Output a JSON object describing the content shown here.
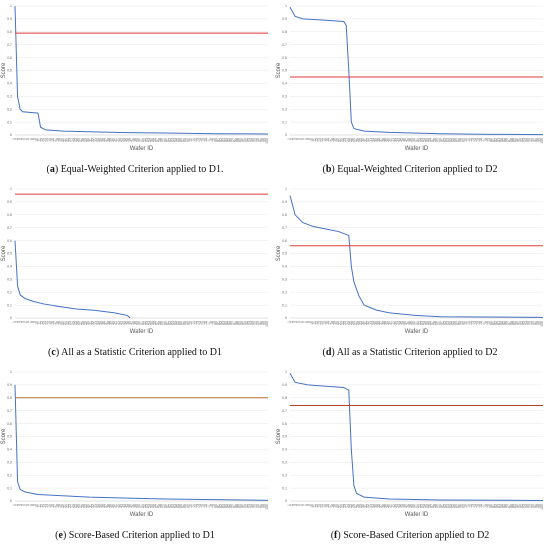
{
  "chart_data": [
    {
      "type": "line",
      "panel_letter": "a",
      "caption": "Equal-Weighted Criterion applied to D1.",
      "xlabel": "Wafer ID",
      "ylabel": "Score",
      "ylim": [
        0,
        1
      ],
      "yticks": [
        "0",
        "0.1",
        "0.2",
        "0.3",
        "0.4",
        "0.5",
        "0.6",
        "0.7",
        "0.8",
        "0.9",
        "1"
      ],
      "x_count": 100,
      "grid": true,
      "threshold": 0.79,
      "threshold_color": "#e03a3a",
      "line_color": "#4472c4",
      "series_points": [
        [
          1,
          1.0
        ],
        [
          2,
          0.3
        ],
        [
          3,
          0.2
        ],
        [
          4,
          0.18
        ],
        [
          10,
          0.17
        ],
        [
          11,
          0.06
        ],
        [
          13,
          0.04
        ],
        [
          20,
          0.03
        ],
        [
          40,
          0.02
        ],
        [
          60,
          0.015
        ],
        [
          80,
          0.01
        ],
        [
          100,
          0.008
        ]
      ]
    },
    {
      "type": "line",
      "panel_letter": "b",
      "caption": "Equal-Weighted Criterion applied to D2",
      "xlabel": "Wafer ID",
      "ylabel": "Score",
      "ylim": [
        0,
        1
      ],
      "yticks": [
        "0",
        "0.1",
        "0.2",
        "0.3",
        "0.4",
        "0.5",
        "0.6",
        "0.7",
        "0.8",
        "0.9",
        "1"
      ],
      "x_count": 100,
      "grid": true,
      "threshold": 0.45,
      "threshold_color": "#e03a3a",
      "line_color": "#4472c4",
      "series_points": [
        [
          1,
          0.99
        ],
        [
          3,
          0.92
        ],
        [
          6,
          0.9
        ],
        [
          15,
          0.89
        ],
        [
          22,
          0.88
        ],
        [
          23,
          0.85
        ],
        [
          24,
          0.5
        ],
        [
          25,
          0.1
        ],
        [
          26,
          0.05
        ],
        [
          30,
          0.03
        ],
        [
          40,
          0.02
        ],
        [
          60,
          0.01
        ],
        [
          80,
          0.005
        ],
        [
          100,
          0.003
        ]
      ]
    },
    {
      "type": "line",
      "panel_letter": "c",
      "caption": "All as a Statistic Criterion applied to D1",
      "xlabel": "Wafer ID",
      "ylabel": "Score",
      "ylim": [
        0,
        1
      ],
      "yticks": [
        "0",
        "0.1",
        "0.2",
        "0.3",
        "0.4",
        "0.5",
        "0.6",
        "0.7",
        "0.8",
        "0.9",
        "1"
      ],
      "x_count": 100,
      "grid": true,
      "threshold": 0.96,
      "threshold_color": "#e03a3a",
      "line_color": "#4472c4",
      "series_points": [
        [
          1,
          0.6
        ],
        [
          2,
          0.25
        ],
        [
          3,
          0.18
        ],
        [
          5,
          0.15
        ],
        [
          8,
          0.13
        ],
        [
          12,
          0.11
        ],
        [
          18,
          0.09
        ],
        [
          25,
          0.07
        ],
        [
          32,
          0.06
        ],
        [
          40,
          0.04
        ],
        [
          45,
          0.02
        ],
        [
          46,
          0.0
        ]
      ]
    },
    {
      "type": "line",
      "panel_letter": "d",
      "caption": "All as a Statistic Criterion applied to D2",
      "xlabel": "Wafer ID",
      "ylabel": "Score",
      "ylim": [
        0,
        1
      ],
      "yticks": [
        "0",
        "0.1",
        "0.2",
        "0.3",
        "0.4",
        "0.5",
        "0.6",
        "0.7",
        "0.8",
        "0.9",
        "1"
      ],
      "x_count": 100,
      "grid": true,
      "threshold": 0.56,
      "threshold_color": "#e03a3a",
      "line_color": "#4472c4",
      "series_points": [
        [
          1,
          0.95
        ],
        [
          3,
          0.8
        ],
        [
          6,
          0.74
        ],
        [
          10,
          0.71
        ],
        [
          15,
          0.69
        ],
        [
          20,
          0.67
        ],
        [
          24,
          0.64
        ],
        [
          25,
          0.4
        ],
        [
          26,
          0.28
        ],
        [
          28,
          0.17
        ],
        [
          30,
          0.1
        ],
        [
          35,
          0.06
        ],
        [
          40,
          0.04
        ],
        [
          50,
          0.02
        ],
        [
          60,
          0.01
        ],
        [
          100,
          0.005
        ]
      ]
    },
    {
      "type": "line",
      "panel_letter": "e",
      "caption": "Score-Based Criterion applied to D1",
      "xlabel": "Wafer ID",
      "ylabel": "Score",
      "ylim": [
        0,
        1
      ],
      "yticks": [
        "0",
        "0.1",
        "0.2",
        "0.3",
        "0.4",
        "0.5",
        "0.6",
        "0.7",
        "0.8",
        "0.9",
        "1"
      ],
      "x_count": 100,
      "grid": true,
      "threshold": 0.8,
      "threshold_color": "#b07030",
      "line_color": "#4472c4",
      "series_points": [
        [
          1,
          0.9
        ],
        [
          2,
          0.15
        ],
        [
          3,
          0.09
        ],
        [
          5,
          0.07
        ],
        [
          10,
          0.05
        ],
        [
          30,
          0.03
        ],
        [
          60,
          0.015
        ],
        [
          100,
          0.005
        ]
      ]
    },
    {
      "type": "line",
      "panel_letter": "f",
      "caption": "Score-Based Criterion applied to D2",
      "xlabel": "Wafer ID",
      "ylabel": "Score",
      "ylim": [
        0,
        1
      ],
      "yticks": [
        "0",
        "0.1",
        "0.2",
        "0.3",
        "0.4",
        "0.5",
        "0.6",
        "0.7",
        "0.8",
        "0.9",
        "1"
      ],
      "x_count": 100,
      "grid": true,
      "threshold": 0.74,
      "threshold_color": "#b04030",
      "line_color": "#4472c4",
      "series_points": [
        [
          1,
          0.99
        ],
        [
          3,
          0.92
        ],
        [
          8,
          0.9
        ],
        [
          15,
          0.89
        ],
        [
          22,
          0.88
        ],
        [
          24,
          0.86
        ],
        [
          25,
          0.4
        ],
        [
          26,
          0.12
        ],
        [
          27,
          0.06
        ],
        [
          30,
          0.03
        ],
        [
          40,
          0.015
        ],
        [
          60,
          0.008
        ],
        [
          100,
          0.004
        ]
      ]
    }
  ]
}
